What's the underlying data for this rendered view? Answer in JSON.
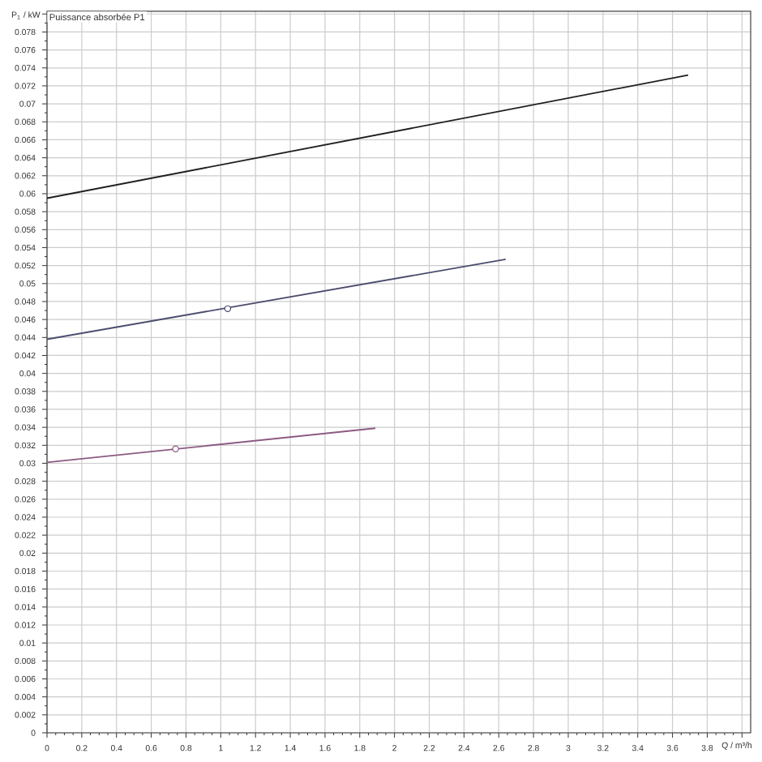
{
  "chart_data": {
    "type": "line",
    "title": "Puissance absorbée P1",
    "xlabel": "Q / m³/h",
    "ylabel": "P$_{1}$ / kW",
    "xlim": [
      0,
      4.05
    ],
    "ylim": [
      0,
      0.0803
    ],
    "xticks": [
      0,
      0.2,
      0.4,
      0.6,
      0.8,
      1,
      1.2,
      1.4,
      1.6,
      1.8,
      2,
      2.2,
      2.4,
      2.6,
      2.8,
      3,
      3.2,
      3.4,
      3.6,
      3.8,
      {
        "value": 4,
        "label": null
      }
    ],
    "yticks": [
      0,
      0.002,
      0.004,
      0.006,
      0.008,
      0.01,
      0.012,
      0.014,
      0.016,
      0.018,
      0.02,
      0.022,
      0.024,
      0.026,
      0.028,
      0.03,
      0.032,
      0.034,
      0.036,
      0.038,
      0.04,
      0.042,
      0.044,
      0.046,
      0.048,
      0.05,
      0.052,
      0.054,
      0.056,
      0.058,
      0.06,
      0.062,
      0.064,
      0.066,
      0.068,
      0.07,
      0.072,
      0.074,
      0.076,
      0.078,
      {
        "value": 0.08,
        "label": null
      }
    ],
    "grid": true,
    "series": [
      {
        "color": "#1e1e1e",
        "x": [
          0,
          3.69
        ],
        "values": [
          0.0595,
          0.0732
        ]
      },
      {
        "color": "#4b4b6e",
        "x": [
          0,
          2.64
        ],
        "values": [
          0.0438,
          0.0527
        ]
      },
      {
        "color": "#8c5a82",
        "x": [
          0,
          1.89
        ],
        "values": [
          0.0301,
          0.0339
        ]
      },
      {
        "type": "scatter",
        "marker": "circle",
        "colors": [
          "#4b4b6e",
          "#8c5a82"
        ],
        "x": [
          1.04,
          0.74
        ],
        "values": [
          0.0472,
          0.0316
        ]
      }
    ]
  }
}
